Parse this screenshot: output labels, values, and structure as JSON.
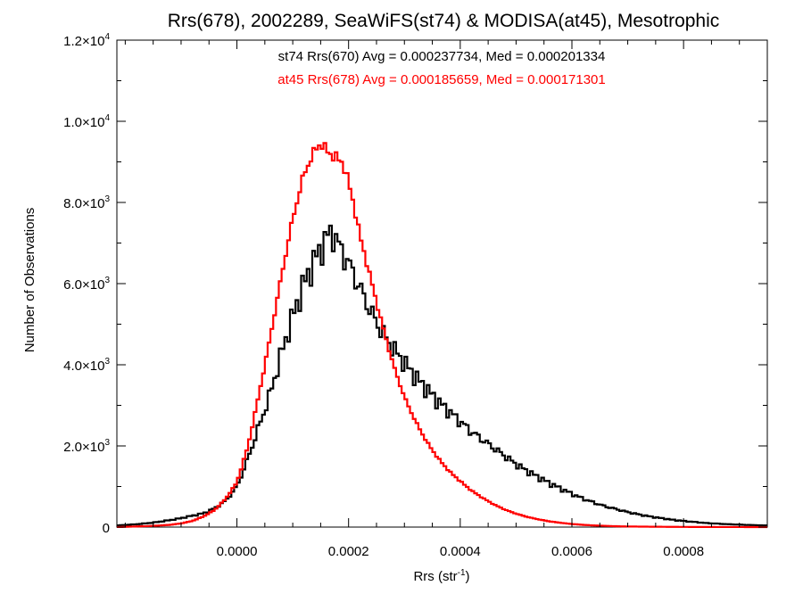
{
  "chart_data": {
    "type": "line",
    "title": "Rrs(678), 2002289, SeaWiFS(st74) & MODISA(at45), Mesotrophic",
    "xlabel": {
      "base": "Rrs (str",
      "sup": "-1",
      "close": ")"
    },
    "ylabel": "Number of Observations",
    "xlim": [
      -0.000215,
      0.00095
    ],
    "ylim": [
      0,
      12000
    ],
    "grid": false,
    "x_ticks": [
      {
        "value": 0.0,
        "label": "0.0000"
      },
      {
        "value": 0.0002,
        "label": "0.0002"
      },
      {
        "value": 0.0004,
        "label": "0.0004"
      },
      {
        "value": 0.0006,
        "label": "0.0006"
      },
      {
        "value": 0.0008,
        "label": "0.0008"
      }
    ],
    "y_ticks": [
      {
        "value": 0,
        "mant": "0",
        "exp": ""
      },
      {
        "value": 2000,
        "mant": "2.0×10",
        "exp": "3"
      },
      {
        "value": 4000,
        "mant": "4.0×10",
        "exp": "3"
      },
      {
        "value": 6000,
        "mant": "6.0×10",
        "exp": "3"
      },
      {
        "value": 8000,
        "mant": "8.0×10",
        "exp": "3"
      },
      {
        "value": 10000,
        "mant": "1.0×10",
        "exp": "4"
      },
      {
        "value": 12000,
        "mant": "1.2×10",
        "exp": "4"
      }
    ],
    "annotations": [
      "st74 Rrs(670) Avg = 0.000237734, Med = 0.000201334",
      "at45 Rrs(678) Avg = 0.000185659, Med = 0.000171301"
    ],
    "bin_width": 5e-06,
    "series": [
      {
        "color": "#000000",
        "points": [
          [
            -0.000215,
            40
          ],
          [
            -0.00018,
            70
          ],
          [
            -0.00015,
            110
          ],
          [
            -0.00012,
            170
          ],
          [
            -0.0001,
            220
          ],
          [
            -8e-05,
            280
          ],
          [
            -6e-05,
            340
          ],
          [
            -4e-05,
            460
          ],
          [
            -2e-05,
            650
          ],
          [
            0.0,
            1000
          ],
          [
            2e-05,
            1700
          ],
          [
            4e-05,
            2500
          ],
          [
            6e-05,
            3300
          ],
          [
            8e-05,
            4300
          ],
          [
            0.0001,
            5200
          ],
          [
            0.00012,
            6000
          ],
          [
            0.00014,
            6600
          ],
          [
            0.00016,
            7100
          ],
          [
            0.00017,
            7300
          ],
          [
            0.00018,
            7000
          ],
          [
            0.0002,
            6500
          ],
          [
            0.00022,
            5900
          ],
          [
            0.00024,
            5300
          ],
          [
            0.00026,
            4800
          ],
          [
            0.00028,
            4400
          ],
          [
            0.0003,
            4050
          ],
          [
            0.00032,
            3700
          ],
          [
            0.00034,
            3400
          ],
          [
            0.00036,
            3100
          ],
          [
            0.00038,
            2850
          ],
          [
            0.0004,
            2600
          ],
          [
            0.00042,
            2350
          ],
          [
            0.00044,
            2150
          ],
          [
            0.00046,
            1950
          ],
          [
            0.00048,
            1750
          ],
          [
            0.0005,
            1550
          ],
          [
            0.00052,
            1380
          ],
          [
            0.00054,
            1230
          ],
          [
            0.00056,
            1080
          ],
          [
            0.00058,
            950
          ],
          [
            0.0006,
            820
          ],
          [
            0.00062,
            700
          ],
          [
            0.00064,
            600
          ],
          [
            0.00066,
            510
          ],
          [
            0.00068,
            440
          ],
          [
            0.0007,
            370
          ],
          [
            0.00072,
            310
          ],
          [
            0.00074,
            260
          ],
          [
            0.00076,
            220
          ],
          [
            0.00078,
            180
          ],
          [
            0.0008,
            150
          ],
          [
            0.00082,
            125
          ],
          [
            0.00084,
            100
          ],
          [
            0.00086,
            85
          ],
          [
            0.00088,
            70
          ],
          [
            0.0009,
            60
          ],
          [
            0.00092,
            50
          ],
          [
            0.00095,
            40
          ]
        ]
      },
      {
        "color": "#ff0000",
        "points": [
          [
            -0.000215,
            0
          ],
          [
            -0.00018,
            15
          ],
          [
            -0.00015,
            30
          ],
          [
            -0.00012,
            55
          ],
          [
            -0.0001,
            90
          ],
          [
            -8e-05,
            150
          ],
          [
            -6e-05,
            260
          ],
          [
            -4e-05,
            420
          ],
          [
            -2e-05,
            700
          ],
          [
            0.0,
            1100
          ],
          [
            2e-05,
            2000
          ],
          [
            4e-05,
            3300
          ],
          [
            6e-05,
            4700
          ],
          [
            8e-05,
            6200
          ],
          [
            0.0001,
            7600
          ],
          [
            0.00012,
            8700
          ],
          [
            0.00014,
            9300
          ],
          [
            0.00015,
            9450
          ],
          [
            0.00016,
            9300
          ],
          [
            0.00017,
            9150
          ],
          [
            0.00018,
            9100
          ],
          [
            0.00019,
            8950
          ],
          [
            0.0002,
            8500
          ],
          [
            0.00021,
            7900
          ],
          [
            0.00022,
            7200
          ],
          [
            0.00024,
            6100
          ],
          [
            0.00026,
            5000
          ],
          [
            0.00028,
            4000
          ],
          [
            0.0003,
            3200
          ],
          [
            0.00032,
            2600
          ],
          [
            0.00034,
            2100
          ],
          [
            0.00036,
            1700
          ],
          [
            0.00038,
            1380
          ],
          [
            0.0004,
            1130
          ],
          [
            0.00042,
            900
          ],
          [
            0.00044,
            720
          ],
          [
            0.00046,
            560
          ],
          [
            0.00048,
            430
          ],
          [
            0.0005,
            330
          ],
          [
            0.00052,
            250
          ],
          [
            0.00054,
            190
          ],
          [
            0.00056,
            140
          ],
          [
            0.00058,
            105
          ],
          [
            0.0006,
            75
          ],
          [
            0.00062,
            55
          ],
          [
            0.00064,
            40
          ],
          [
            0.00066,
            30
          ],
          [
            0.00068,
            20
          ],
          [
            0.0007,
            15
          ],
          [
            0.00075,
            8
          ],
          [
            0.0008,
            4
          ],
          [
            0.00085,
            2
          ],
          [
            0.00095,
            0
          ]
        ]
      }
    ]
  }
}
